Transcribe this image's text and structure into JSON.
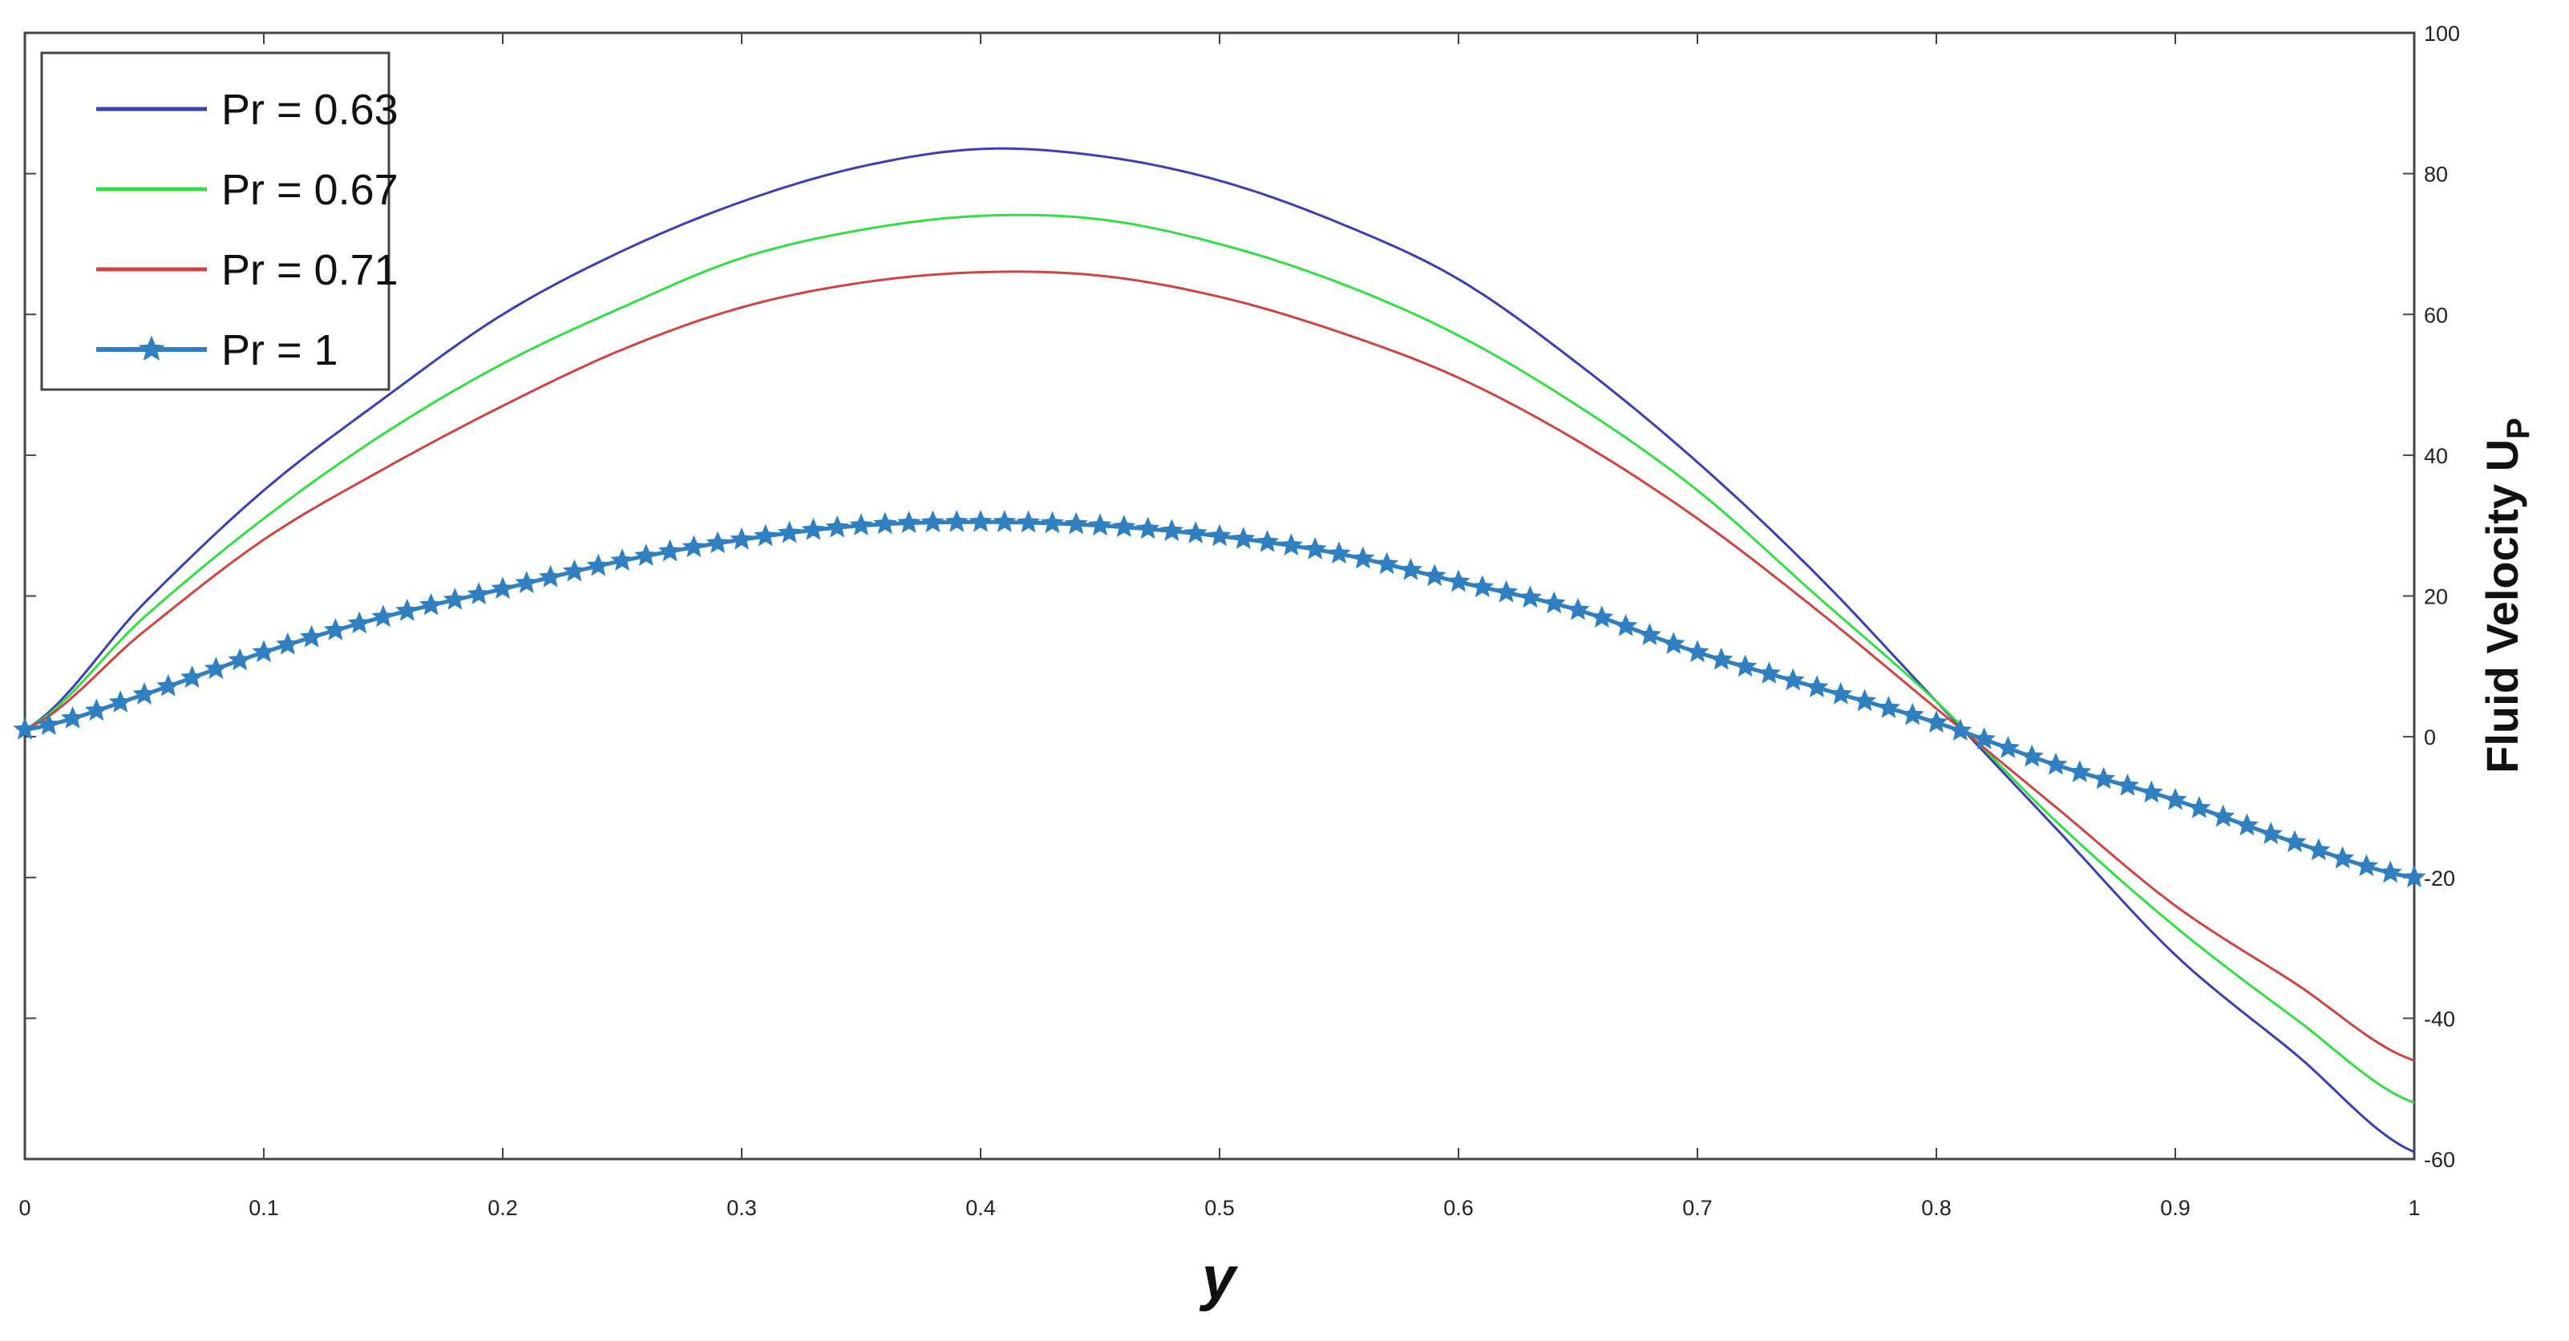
{
  "chart_data": {
    "type": "line",
    "xlabel": "y",
    "ylabel": "Fluid Velocity U",
    "ylabel_subscript": "P",
    "xlim": [
      0,
      1
    ],
    "ylim": [
      -60,
      100
    ],
    "xticks": [
      "0",
      "0.1",
      "0.2",
      "0.3",
      "0.4",
      "0.5",
      "0.6",
      "0.7",
      "0.8",
      "0.9",
      "1"
    ],
    "yticks": [
      "-60",
      "-40",
      "-20",
      "0",
      "20",
      "40",
      "60",
      "80",
      "100"
    ],
    "grid": false,
    "yaxis_side": "right",
    "legend_position": "top-left",
    "x": [
      0,
      0.05,
      0.1,
      0.15,
      0.2,
      0.25,
      0.3,
      0.35,
      0.4,
      0.45,
      0.5,
      0.55,
      0.6,
      0.65,
      0.7,
      0.75,
      0.8,
      0.85,
      0.9,
      0.95,
      1
    ],
    "series": [
      {
        "name": "Pr = 0.63",
        "color": "#3b3fb0",
        "marker": "none",
        "values": [
          1,
          19,
          35,
          48,
          60,
          69,
          76,
          81,
          83.5,
          82.5,
          79,
          73,
          65,
          53,
          39,
          23,
          5,
          -13,
          -31,
          -45,
          -59
        ]
      },
      {
        "name": "Pr = 0.67",
        "color": "#33dd44",
        "marker": "none",
        "values": [
          1,
          17,
          31,
          43,
          53,
          61,
          68,
          72,
          74,
          73.5,
          70,
          64.5,
          57,
          47,
          35,
          20,
          5,
          -12,
          -27,
          -40,
          -52
        ]
      },
      {
        "name": "Pr = 0.71",
        "color": "#cc4444",
        "marker": "none",
        "values": [
          1,
          15,
          28,
          38,
          47,
          55,
          61,
          64.5,
          66,
          65.5,
          62.5,
          57.5,
          51,
          42,
          31,
          18,
          4,
          -10,
          -24,
          -35,
          -46
        ]
      },
      {
        "name": "Pr = 1",
        "color": "#2f7fc1",
        "marker": "star",
        "values": [
          1,
          6,
          12,
          17,
          21,
          25,
          28,
          30,
          30.5,
          30,
          28.5,
          26,
          22,
          18,
          12,
          7,
          2,
          -4,
          -9,
          -15,
          -20
        ]
      }
    ]
  }
}
